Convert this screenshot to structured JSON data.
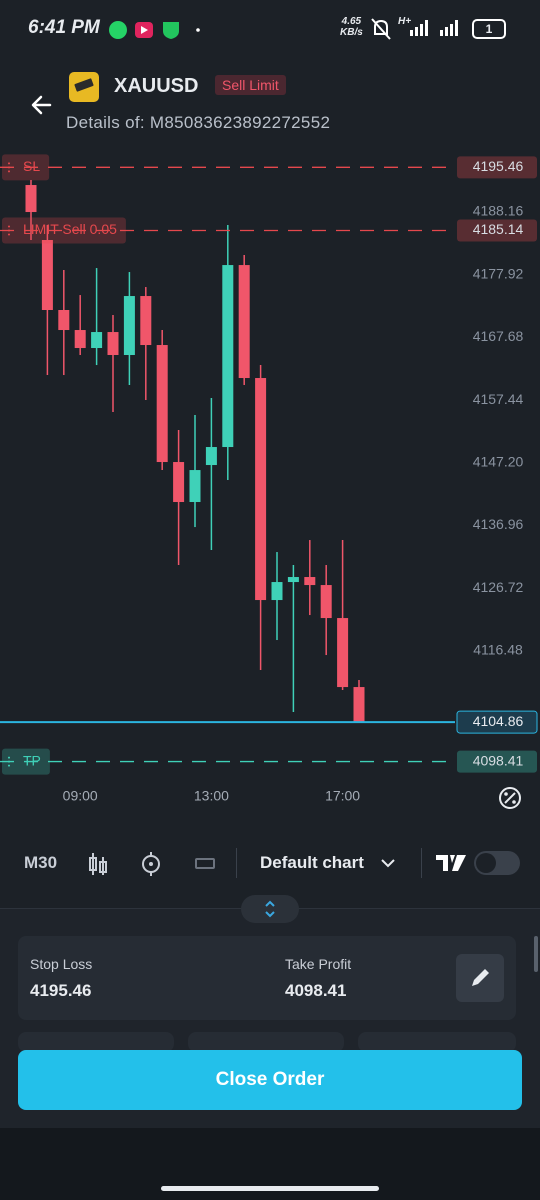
{
  "status_bar": {
    "time": "6:41 PM",
    "speed": "4.65",
    "speed_unit": "KB/s",
    "network": "H+",
    "battery": "1"
  },
  "header": {
    "symbol": "XAUUSD",
    "badge": "Sell Limit",
    "details": "Details of: M85083623892272552"
  },
  "chart_data": {
    "type": "candlestick",
    "categories": [
      null,
      null,
      null,
      "09:00",
      null,
      null,
      null,
      null,
      null,
      null,
      null,
      "13:00",
      null,
      null,
      null,
      null,
      null,
      null,
      null,
      "17:00",
      null
    ],
    "open": [
      4192.57,
      4183.59,
      4172.16,
      4168.89,
      4165.95,
      4168.56,
      4164.81,
      4174.44,
      4166.44,
      4147.33,
      4140.8,
      4146.84,
      4149.78,
      4179.5,
      4161.05,
      4124.79,
      4127.73,
      4128.55,
      4127.24,
      4121.85,
      4110.58
    ],
    "high": [
      4193.39,
      4186.04,
      4178.69,
      4174.6,
      4179.01,
      4171.34,
      4178.36,
      4175.91,
      4168.89,
      4152.56,
      4155.01,
      4157.78,
      4186.04,
      4181.14,
      4163.17,
      4132.63,
      4130.51,
      4134.59,
      4130.51,
      4134.59,
      4111.73
    ],
    "low": [
      4183.59,
      4161.54,
      4161.54,
      4164.81,
      4163.17,
      4155.5,
      4159.91,
      4157.46,
      4146.02,
      4130.51,
      4136.71,
      4132.96,
      4144.39,
      4159.91,
      4113.36,
      4118.26,
      4106.5,
      4122.34,
      4115.81,
      4110.09,
      4104.86
    ],
    "close": [
      4188.16,
      4172.16,
      4168.89,
      4165.95,
      4168.56,
      4164.81,
      4174.44,
      4166.44,
      4147.33,
      4140.8,
      4146.02,
      4149.78,
      4179.5,
      4161.05,
      4124.79,
      4127.73,
      4128.55,
      4127.24,
      4121.85,
      4110.58,
      4104.86
    ],
    "up_color": "#3fd1b8",
    "down_color": "#f0566a",
    "ylim": [
      4095.4,
      4198.29
    ],
    "yticks": [
      4188.16,
      4177.92,
      4167.68,
      4157.44,
      {
        "value": 4147.2,
        "label": "4147.20"
      },
      4136.96,
      4126.72,
      4116.48
    ],
    "grid": false,
    "levels": [
      {
        "label": "SL",
        "value": 4195.46,
        "color": "#e5484d"
      },
      {
        "label": "LIMIT Sell 0.05",
        "value": 4185.14,
        "color": "#e5484d"
      },
      {
        "label": "TP",
        "value": 4098.41,
        "color": "#3fd1b8"
      }
    ],
    "last_price": 4104.86,
    "last_price_color": "#2bb5e0"
  },
  "toolbar": {
    "timeframe": "M30",
    "chart_mode": "Default chart"
  },
  "order_card": {
    "stop_loss_label": "Stop Loss",
    "stop_loss": "4195.46",
    "take_profit_label": "Take Profit",
    "take_profit": "4098.41"
  },
  "action": {
    "button": "Close Order"
  }
}
